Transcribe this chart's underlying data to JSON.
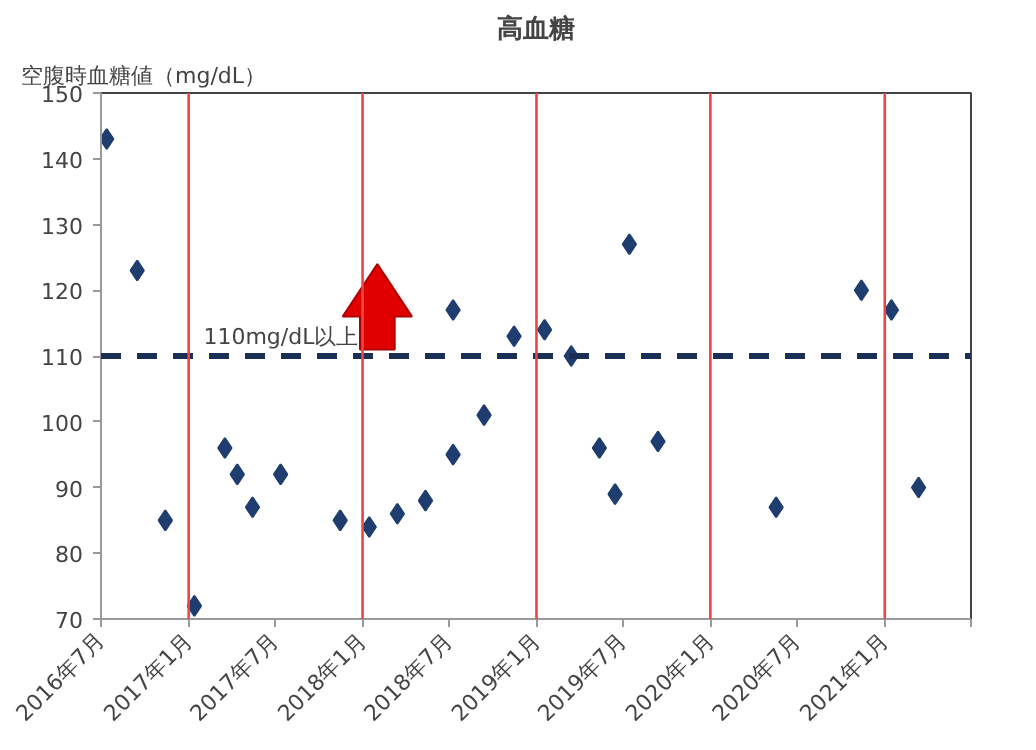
{
  "chart_data": {
    "type": "scatter",
    "title": "高血糖",
    "ylabel": "空腹時血糖値（mg/dL）",
    "x": [
      "2016-07-13",
      "2016-09-15",
      "2016-11-13",
      "2017-01-13",
      "2017-03-18",
      "2017-04-13",
      "2017-05-15",
      "2017-07-13",
      "2017-11-15",
      "2018-01-15",
      "2018-03-15",
      "2018-05-13",
      "2018-07-10",
      "2018-07-10",
      "2018-09-13",
      "2018-11-15",
      "2019-01-18",
      "2019-03-15",
      "2019-05-13",
      "2019-06-15",
      "2019-07-15",
      "2019-09-13",
      "2020-05-18",
      "2020-11-13",
      "2021-01-15",
      "2021-03-13"
    ],
    "series": [
      {
        "color": "#1f3d6e",
        "values": [
          143,
          123,
          85,
          72,
          96,
          92,
          87,
          92,
          85,
          84,
          86,
          88,
          95,
          117,
          101,
          113,
          114,
          110,
          96,
          89,
          127,
          97,
          87,
          120,
          117,
          90
        ]
      }
    ],
    "marker": "diamond",
    "grid": false,
    "xlim": [
      "2016-07",
      "2021-07"
    ],
    "xticks": [
      {
        "value": "2016-07",
        "label": "2016年7月"
      },
      {
        "value": "2017-01",
        "label": "2017年1月"
      },
      {
        "value": "2017-07",
        "label": "2017年7月"
      },
      {
        "value": "2018-01",
        "label": "2018年1月"
      },
      {
        "value": "2018-07",
        "label": "2018年7月"
      },
      {
        "value": "2019-01",
        "label": "2019年1月"
      },
      {
        "value": "2019-07",
        "label": "2019年7月"
      },
      {
        "value": "2020-01",
        "label": "2020年1月"
      },
      {
        "value": "2020-07",
        "label": "2020年7月"
      },
      {
        "value": "2021-01",
        "label": "2021年1月"
      },
      {
        "value": "2021-07",
        "label": null
      }
    ],
    "ylim": [
      70,
      150
    ],
    "yticks": [
      70,
      80,
      90,
      100,
      110,
      120,
      130,
      140,
      150
    ],
    "ref_lines": [
      {
        "axis": "y",
        "value": 110,
        "label": "110mg/dL以上",
        "color": "#1b2f55",
        "line_style": "dashed"
      },
      {
        "axis": "x",
        "value": "2017-01",
        "label": null,
        "color": "#ee4444",
        "line_style": "solid"
      },
      {
        "axis": "x",
        "value": "2018-01",
        "label": null,
        "color": "#ee4444",
        "line_style": "solid"
      },
      {
        "axis": "x",
        "value": "2019-01",
        "label": null,
        "color": "#ee4444",
        "line_style": "solid"
      },
      {
        "axis": "x",
        "value": "2020-01",
        "label": null,
        "color": "#ee4444",
        "line_style": "solid"
      },
      {
        "axis": "x",
        "value": "2021-01",
        "label": null,
        "color": "#ee4444",
        "line_style": "solid"
      }
    ]
  }
}
